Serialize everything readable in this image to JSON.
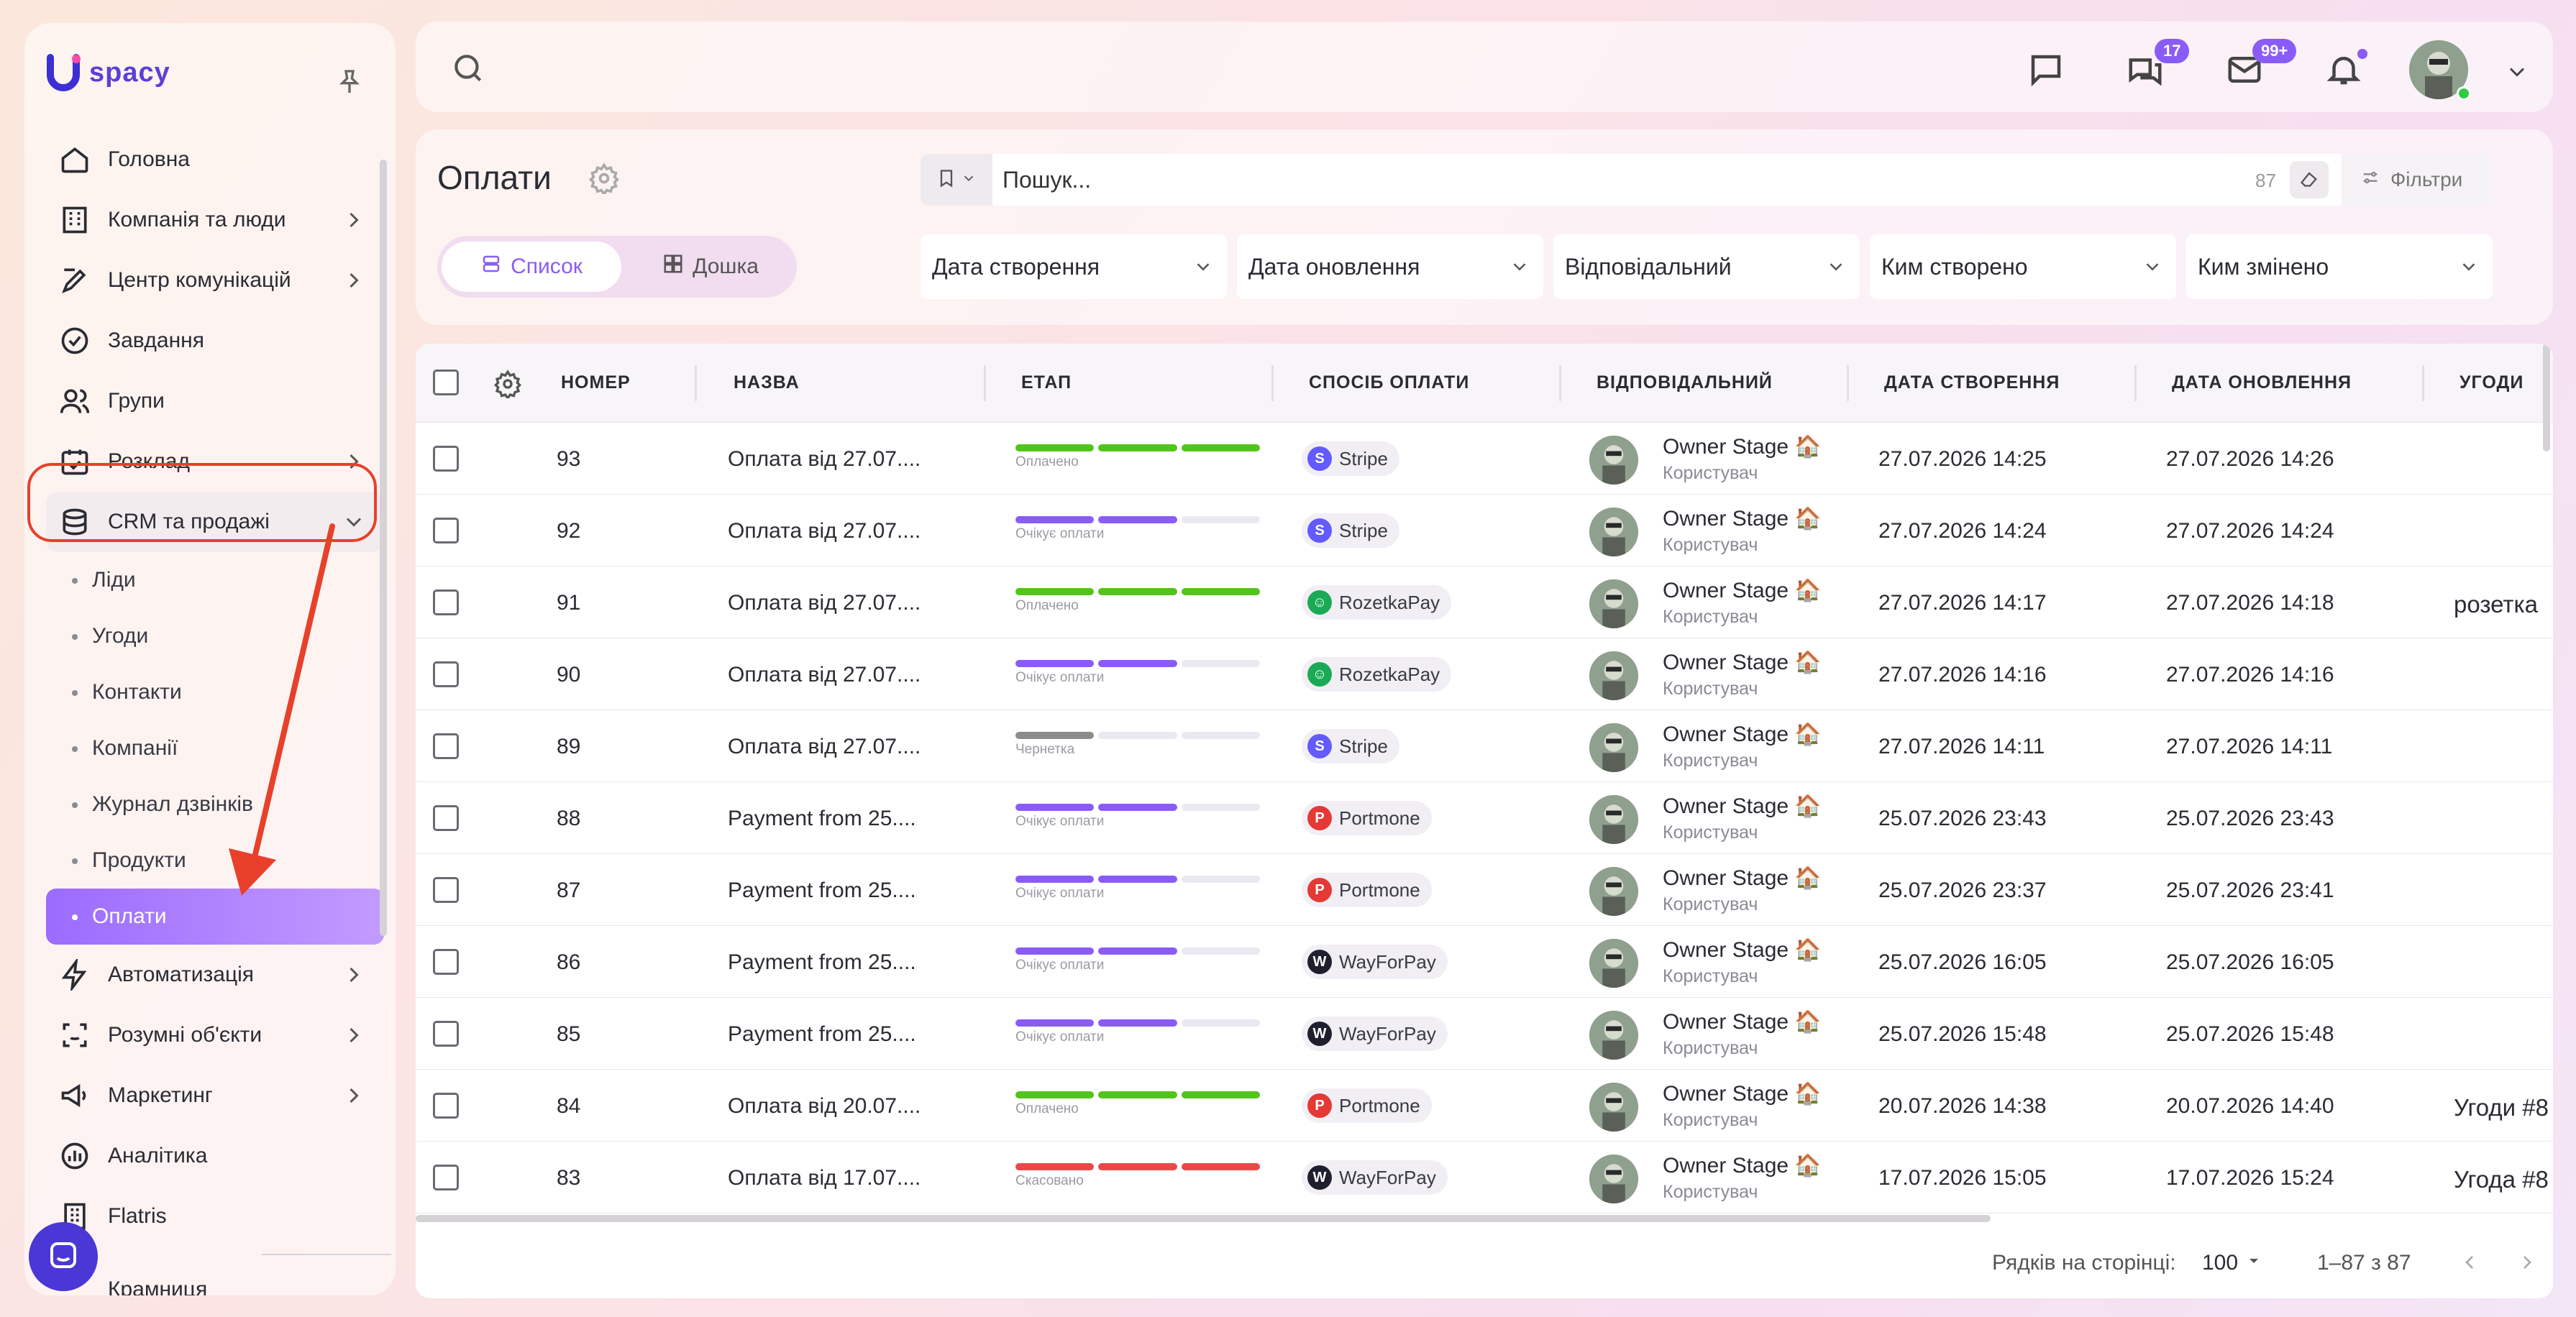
{
  "app": {
    "brand": "spacy"
  },
  "sidebar": {
    "items": [
      {
        "label": "Головна",
        "icon": "home-icon"
      },
      {
        "label": "Компанія та люди",
        "icon": "building-icon"
      },
      {
        "label": "Центр комунікацій",
        "icon": "chat-edit-icon"
      },
      {
        "label": "Завдання",
        "icon": "check-circle-icon"
      },
      {
        "label": "Групи",
        "icon": "users-icon"
      },
      {
        "label": "Розклад",
        "icon": "calendar-check-icon"
      },
      {
        "label": "CRM та продажі",
        "icon": "database-icon"
      }
    ],
    "crm_sub": [
      "Ліди",
      "Угоди",
      "Контакти",
      "Компанії",
      "Журнал дзвінків",
      "Продукти",
      "Оплати"
    ],
    "items_after": [
      {
        "label": "Автоматизація",
        "icon": "lightning-icon"
      },
      {
        "label": "Розумні об'єкти",
        "icon": "scan-icon"
      },
      {
        "label": "Маркетинг",
        "icon": "megaphone-icon"
      },
      {
        "label": "Аналітика",
        "icon": "chart-icon"
      },
      {
        "label": "Flatris",
        "icon": "grid-icon"
      },
      {
        "label": "Крамниця",
        "icon": "shop-icon"
      }
    ]
  },
  "topbar": {
    "chat_badge": "17",
    "mail_badge": "99+"
  },
  "header": {
    "title": "Оплати",
    "view_list": "Список",
    "view_board": "Дошка",
    "search_placeholder": "Пошук...",
    "count": "87",
    "filters_label": "Фільтри",
    "dropdowns": [
      "Дата створення",
      "Дата оновлення",
      "Відповідальний",
      "Ким створено",
      "Ким змінено"
    ]
  },
  "table": {
    "columns": [
      "НОМЕР",
      "НАЗВА",
      "ЕТАП",
      "СПОСІБ ОПЛАТИ",
      "ВІДПОВІДАЛЬНИЙ",
      "ДАТА СТВОРЕННЯ",
      "ДАТА ОНОВЛЕННЯ",
      "УГОДИ"
    ],
    "rows": [
      {
        "num": "93",
        "name": "Оплата від 27.07....",
        "stage": "Оплачено",
        "stage_kind": "paid",
        "method": "Stripe",
        "resp": "Owner Stage 🏠",
        "role": "Користувач",
        "created": "27.07.2026 14:25",
        "updated": "27.07.2026 14:26",
        "deal": ""
      },
      {
        "num": "92",
        "name": "Оплата від 27.07....",
        "stage": "Очікує оплати",
        "stage_kind": "wait",
        "method": "Stripe",
        "resp": "Owner Stage 🏠",
        "role": "Користувач",
        "created": "27.07.2026 14:24",
        "updated": "27.07.2026 14:24",
        "deal": ""
      },
      {
        "num": "91",
        "name": "Оплата від 27.07....",
        "stage": "Оплачено",
        "stage_kind": "paid",
        "method": "RozetkaPay",
        "resp": "Owner Stage 🏠",
        "role": "Користувач",
        "created": "27.07.2026 14:17",
        "updated": "27.07.2026 14:18",
        "deal": "розетка"
      },
      {
        "num": "90",
        "name": "Оплата від 27.07....",
        "stage": "Очікує оплати",
        "stage_kind": "wait",
        "method": "RozetkaPay",
        "resp": "Owner Stage 🏠",
        "role": "Користувач",
        "created": "27.07.2026 14:16",
        "updated": "27.07.2026 14:16",
        "deal": ""
      },
      {
        "num": "89",
        "name": "Оплата від 27.07....",
        "stage": "Чернетка",
        "stage_kind": "draft",
        "method": "Stripe",
        "resp": "Owner Stage 🏠",
        "role": "Користувач",
        "created": "27.07.2026 14:11",
        "updated": "27.07.2026 14:11",
        "deal": ""
      },
      {
        "num": "88",
        "name": "Payment from 25....",
        "stage": "Очікує оплати",
        "stage_kind": "wait",
        "method": "Portmone",
        "resp": "Owner Stage 🏠",
        "role": "Користувач",
        "created": "25.07.2026 23:43",
        "updated": "25.07.2026 23:43",
        "deal": ""
      },
      {
        "num": "87",
        "name": "Payment from 25....",
        "stage": "Очікує оплати",
        "stage_kind": "wait",
        "method": "Portmone",
        "resp": "Owner Stage 🏠",
        "role": "Користувач",
        "created": "25.07.2026 23:37",
        "updated": "25.07.2026 23:41",
        "deal": ""
      },
      {
        "num": "86",
        "name": "Payment from 25....",
        "stage": "Очікує оплати",
        "stage_kind": "wait",
        "method": "WayForPay",
        "resp": "Owner Stage 🏠",
        "role": "Користувач",
        "created": "25.07.2026 16:05",
        "updated": "25.07.2026 16:05",
        "deal": ""
      },
      {
        "num": "85",
        "name": "Payment from 25....",
        "stage": "Очікує оплати",
        "stage_kind": "wait",
        "method": "WayForPay",
        "resp": "Owner Stage 🏠",
        "role": "Користувач",
        "created": "25.07.2026 15:48",
        "updated": "25.07.2026 15:48",
        "deal": ""
      },
      {
        "num": "84",
        "name": "Оплата від 20.07....",
        "stage": "Оплачено",
        "stage_kind": "paid",
        "method": "Portmone",
        "resp": "Owner Stage 🏠",
        "role": "Користувач",
        "created": "20.07.2026 14:38",
        "updated": "20.07.2026 14:40",
        "deal": "Угоди #8"
      },
      {
        "num": "83",
        "name": "Оплата від 17.07....",
        "stage": "Скасовано",
        "stage_kind": "cancel",
        "method": "WayForPay",
        "resp": "Owner Stage 🏠",
        "role": "Користувач",
        "created": "17.07.2026 15:05",
        "updated": "17.07.2026 15:24",
        "deal": "Угода #8"
      }
    ]
  },
  "footer": {
    "rows_label": "Рядків на сторінці:",
    "rows_value": "100",
    "range": "1–87 з 87"
  },
  "colors": {
    "accent": "#8a5cf6",
    "paid": "#52c41a",
    "wait": "#8a5cf6",
    "draft": "#8c8c8c",
    "cancel": "#e84a4a",
    "annotation": "#e8402a",
    "stripe": "#635bff",
    "rozetka": "#1aaa55",
    "portmone": "#e53935",
    "wayforpay": "#1f1f2e"
  }
}
